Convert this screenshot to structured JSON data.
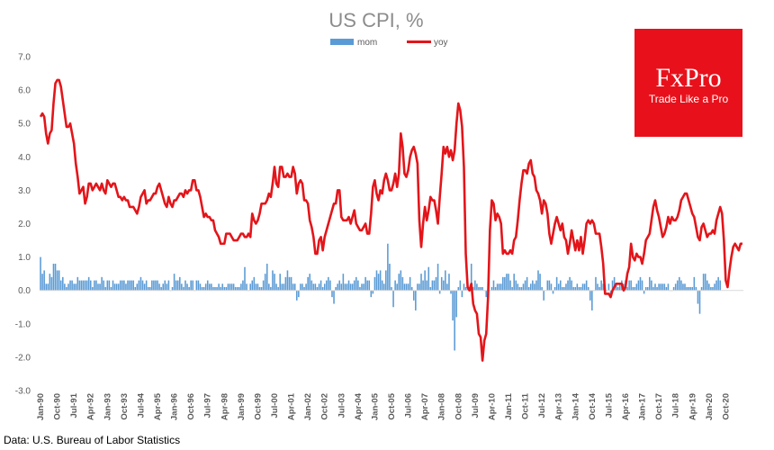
{
  "logo": {
    "brand": "FxPro",
    "tagline": "Trade Like a Pro",
    "bg_color": "#e8111b"
  },
  "source": "Data: U.S. Bureau of Labor Statistics",
  "chart_data": {
    "type": "bar+line",
    "title": "US CPI, %",
    "xlabel": "",
    "ylabel": "",
    "ylim": [
      -3.0,
      7.0
    ],
    "y_ticks": [
      "7.0",
      "6.0",
      "5.0",
      "4.0",
      "3.0",
      "2.0",
      "1.0",
      "0.0",
      "-1.0",
      "-2.0",
      "-3.0"
    ],
    "grid": false,
    "legend_position": "top-center",
    "x_start": "1990-01",
    "x_end": "2021-03",
    "x_tick_labels": [
      "Jan-90",
      "Oct-90",
      "Jul-91",
      "Apr-92",
      "Jan-93",
      "Oct-93",
      "Jul-94",
      "Apr-95",
      "Jan-96",
      "Oct-96",
      "Jul-97",
      "Apr-98",
      "Jan-99",
      "Oct-99",
      "Jul-00",
      "Apr-01",
      "Jan-02",
      "Oct-02",
      "Jul-03",
      "Apr-04",
      "Jan-05",
      "Oct-05",
      "Jul-06",
      "Apr-07",
      "Jan-08",
      "Oct-08",
      "Jul-09",
      "Apr-10",
      "Jan-11",
      "Oct-11",
      "Jul-12",
      "Apr-13",
      "Jan-14",
      "Oct-14",
      "Jul-15",
      "Apr-16",
      "Jan-17",
      "Oct-17",
      "Jul-18",
      "Apr-19",
      "Jan-20",
      "Oct-20"
    ],
    "series": [
      {
        "name": "mom",
        "kind": "bar",
        "color": "#5b9bd5",
        "values": [
          1.0,
          0.5,
          0.6,
          0.2,
          0.2,
          0.5,
          0.4,
          0.8,
          0.8,
          0.6,
          0.6,
          0.3,
          0.4,
          0.2,
          0.1,
          0.2,
          0.3,
          0.3,
          0.2,
          0.2,
          0.4,
          0.3,
          0.3,
          0.3,
          0.3,
          0.3,
          0.4,
          0.3,
          0.1,
          0.3,
          0.3,
          0.2,
          0.2,
          0.4,
          0.3,
          0.1,
          0.3,
          0.3,
          0.1,
          0.3,
          0.2,
          0.2,
          0.2,
          0.3,
          0.3,
          0.3,
          0.2,
          0.3,
          0.3,
          0.3,
          0.3,
          0.1,
          0.2,
          0.3,
          0.4,
          0.3,
          0.2,
          0.3,
          0.1,
          0.1,
          0.3,
          0.3,
          0.3,
          0.3,
          0.2,
          0.1,
          0.2,
          0.3,
          0.2,
          0.3,
          0.0,
          0.1,
          0.5,
          0.3,
          0.3,
          0.4,
          0.2,
          0.1,
          0.3,
          0.2,
          0.1,
          0.3,
          0.3,
          0.0,
          0.3,
          0.3,
          0.2,
          0.1,
          0.1,
          0.2,
          0.3,
          0.2,
          0.2,
          0.1,
          0.1,
          0.1,
          0.2,
          0.1,
          0.2,
          0.1,
          0.1,
          0.2,
          0.2,
          0.2,
          0.2,
          0.1,
          0.1,
          0.1,
          0.2,
          0.3,
          0.7,
          0.2,
          0.0,
          0.2,
          0.3,
          0.4,
          0.2,
          0.2,
          0.1,
          0.1,
          0.3,
          0.5,
          0.8,
          0.2,
          0.1,
          0.6,
          0.5,
          0.2,
          0.1,
          0.5,
          0.2,
          0.2,
          0.4,
          0.6,
          0.4,
          0.4,
          0.2,
          0.2,
          -0.3,
          -0.2,
          0.2,
          0.2,
          0.1,
          0.2,
          0.4,
          0.5,
          0.3,
          0.2,
          0.2,
          0.1,
          0.2,
          0.3,
          0.1,
          0.2,
          0.3,
          0.4,
          0.3,
          -0.2,
          -0.4,
          0.1,
          0.2,
          0.3,
          0.2,
          0.5,
          0.2,
          0.2,
          0.3,
          0.2,
          0.2,
          0.3,
          0.4,
          0.3,
          0.1,
          0.2,
          0.2,
          0.4,
          0.3,
          0.3,
          -0.2,
          -0.1,
          0.4,
          0.6,
          0.5,
          0.6,
          0.3,
          0.2,
          0.6,
          1.4,
          0.8,
          0.1,
          -0.5,
          0.3,
          0.2,
          0.5,
          0.6,
          0.4,
          0.2,
          0.2,
          0.2,
          0.4,
          0.1,
          -0.3,
          -0.6,
          0.2,
          0.2,
          0.5,
          0.3,
          0.6,
          0.3,
          0.7,
          0.1,
          0.3,
          0.3,
          0.4,
          0.8,
          -0.1,
          0.4,
          0.3,
          0.6,
          0.2,
          0.5,
          -0.1,
          -0.9,
          -1.8,
          -0.8,
          0.1,
          0.3,
          -0.2,
          0.2,
          0.1,
          0.3,
          0.1,
          0.8,
          0.1,
          0.3,
          0.2,
          0.1,
          0.1,
          0.1,
          0.0,
          -0.2,
          -0.1,
          0.0,
          0.1,
          0.3,
          0.1,
          0.2,
          0.2,
          0.2,
          0.4,
          0.4,
          0.5,
          0.5,
          0.3,
          0.1,
          0.5,
          0.3,
          0.2,
          0.1,
          0.1,
          0.2,
          0.3,
          0.4,
          0.1,
          0.2,
          0.3,
          0.2,
          0.3,
          0.6,
          0.5,
          0.1,
          -0.3,
          0.0,
          0.3,
          0.3,
          0.2,
          -0.1,
          0.1,
          0.4,
          0.2,
          0.3,
          0.1,
          0.1,
          0.2,
          0.3,
          0.4,
          0.3,
          0.1,
          0.1,
          0.2,
          0.1,
          0.1,
          0.2,
          0.2,
          0.3,
          0.1,
          -0.3,
          -0.6,
          0.0,
          0.4,
          0.2,
          0.1,
          0.3,
          0.2,
          0.1,
          0.0,
          0.2,
          -0.1,
          0.3,
          0.4,
          0.2,
          0.1,
          0.2,
          0.3,
          0.2,
          0.3,
          0.1,
          0.3,
          0.3,
          0.1,
          0.1,
          0.2,
          0.3,
          0.4,
          0.3,
          -0.1,
          0.1,
          0.1,
          0.4,
          0.3,
          0.1,
          0.2,
          0.1,
          0.2,
          0.2,
          0.2,
          0.2,
          0.1,
          0.2,
          0.0,
          0.0,
          0.1,
          0.2,
          0.3,
          0.4,
          0.3,
          0.2,
          0.2,
          0.1,
          0.1,
          0.1,
          0.1,
          0.4,
          0.1,
          -0.4,
          -0.7,
          0.1,
          0.5,
          0.5,
          0.3,
          0.2,
          0.1,
          0.1,
          0.2,
          0.3,
          0.4,
          0.3
        ]
      },
      {
        "name": "yoy",
        "kind": "line",
        "color": "#e3151a",
        "values": [
          5.2,
          5.3,
          5.2,
          4.7,
          4.4,
          4.7,
          4.8,
          5.6,
          6.2,
          6.3,
          6.3,
          6.1,
          5.7,
          5.3,
          4.9,
          4.9,
          5.0,
          4.7,
          4.4,
          3.8,
          3.4,
          2.9,
          3.0,
          3.1,
          2.6,
          2.8,
          3.2,
          3.2,
          3.0,
          3.1,
          3.2,
          3.1,
          3.0,
          3.2,
          3.0,
          2.9,
          3.3,
          3.2,
          3.1,
          3.2,
          3.2,
          3.0,
          2.8,
          2.8,
          2.7,
          2.8,
          2.7,
          2.7,
          2.5,
          2.5,
          2.5,
          2.4,
          2.3,
          2.5,
          2.8,
          2.9,
          3.0,
          2.6,
          2.7,
          2.7,
          2.8,
          2.9,
          2.9,
          3.1,
          3.2,
          3.0,
          2.8,
          2.6,
          2.5,
          2.8,
          2.6,
          2.5,
          2.7,
          2.7,
          2.8,
          2.9,
          2.9,
          2.8,
          3.0,
          2.9,
          3.0,
          3.0,
          3.3,
          3.3,
          3.0,
          3.0,
          2.8,
          2.5,
          2.2,
          2.3,
          2.2,
          2.2,
          2.1,
          2.1,
          1.8,
          1.7,
          1.6,
          1.4,
          1.4,
          1.4,
          1.7,
          1.7,
          1.7,
          1.6,
          1.5,
          1.5,
          1.5,
          1.6,
          1.7,
          1.7,
          1.6,
          1.6,
          1.7,
          1.6,
          2.3,
          2.1,
          2.0,
          2.1,
          2.3,
          2.6,
          2.6,
          2.6,
          2.7,
          2.9,
          2.8,
          3.2,
          3.7,
          3.2,
          3.1,
          3.7,
          3.7,
          3.4,
          3.4,
          3.5,
          3.4,
          3.4,
          3.7,
          3.5,
          2.9,
          3.2,
          3.3,
          3.2,
          2.7,
          2.7,
          2.6,
          2.1,
          1.9,
          1.6,
          1.1,
          1.1,
          1.5,
          1.6,
          1.2,
          1.6,
          1.8,
          2.0,
          2.2,
          2.4,
          2.6,
          2.6,
          3.0,
          3.0,
          2.2,
          2.1,
          2.1,
          2.1,
          2.2,
          2.0,
          2.2,
          2.4,
          2.0,
          1.9,
          1.8,
          1.8,
          1.9,
          2.0,
          1.7,
          1.7,
          2.3,
          3.1,
          3.3,
          2.9,
          2.7,
          3.0,
          2.9,
          3.3,
          3.5,
          3.3,
          3.0,
          3.0,
          3.2,
          3.5,
          3.1,
          3.5,
          4.7,
          4.3,
          3.5,
          3.4,
          3.6,
          4.0,
          4.2,
          4.3,
          4.1,
          3.8,
          2.1,
          1.3,
          2.0,
          2.5,
          2.1,
          2.4,
          2.8,
          2.7,
          2.7,
          2.4,
          2.0,
          2.8,
          3.5,
          4.3,
          4.1,
          4.3,
          4.0,
          4.2,
          3.9,
          4.2,
          5.0,
          5.6,
          5.4,
          4.9,
          3.7,
          1.1,
          0.1,
          0.0,
          0.2,
          -0.4,
          -0.6,
          -0.7,
          -1.3,
          -1.4,
          -2.1,
          -1.5,
          -1.3,
          -0.2,
          1.8,
          2.7,
          2.6,
          2.1,
          2.3,
          2.2,
          2.0,
          1.1,
          1.2,
          1.1,
          1.1,
          1.2,
          1.1,
          1.5,
          1.6,
          2.1,
          2.7,
          3.2,
          3.6,
          3.6,
          3.5,
          3.8,
          3.9,
          3.5,
          3.4,
          3.0,
          2.9,
          2.7,
          2.3,
          2.7,
          2.6,
          2.3,
          1.7,
          1.4,
          1.7,
          2.0,
          2.2,
          2.0,
          1.8,
          2.0,
          1.6,
          1.5,
          1.1,
          1.4,
          1.8,
          1.5,
          1.2,
          1.5,
          1.2,
          1.6,
          1.1,
          1.5,
          2.0,
          2.1,
          2.0,
          2.1,
          2.0,
          1.7,
          1.7,
          1.7,
          1.3,
          0.8,
          -0.1,
          -0.1,
          -0.1,
          -0.2,
          0.0,
          0.1,
          0.2,
          0.2,
          0.2,
          0.2,
          0.0,
          0.1,
          0.5,
          0.7,
          1.4,
          1.0,
          0.9,
          1.1,
          1.0,
          1.0,
          0.8,
          1.1,
          1.5,
          1.6,
          1.7,
          2.1,
          2.5,
          2.7,
          2.4,
          2.2,
          1.9,
          1.6,
          1.7,
          1.9,
          2.2,
          2.0,
          2.2,
          2.1,
          2.1,
          2.2,
          2.4,
          2.7,
          2.8,
          2.9,
          2.9,
          2.7,
          2.5,
          2.3,
          2.2,
          1.9,
          1.6,
          1.5,
          1.9,
          2.0,
          1.8,
          1.6,
          1.7,
          1.7,
          1.8,
          1.7,
          2.1,
          2.3,
          2.5,
          2.3,
          1.5,
          0.3,
          0.1,
          0.6,
          1.0,
          1.3,
          1.4,
          1.3,
          1.2,
          1.4,
          1.4
        ]
      }
    ]
  }
}
